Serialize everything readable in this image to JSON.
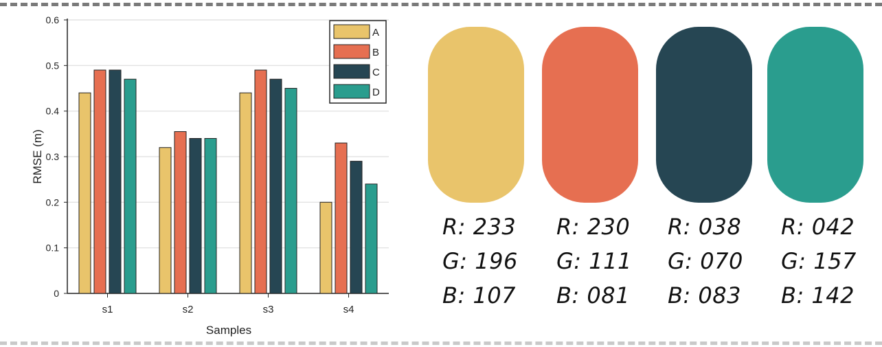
{
  "chart_data": {
    "type": "bar",
    "categories": [
      "s1",
      "s2",
      "s3",
      "s4"
    ],
    "series": [
      {
        "name": "A",
        "color": "#E9C46B",
        "values": [
          0.44,
          0.32,
          0.44,
          0.2
        ]
      },
      {
        "name": "B",
        "color": "#E66F51",
        "values": [
          0.49,
          0.355,
          0.49,
          0.33
        ]
      },
      {
        "name": "C",
        "color": "#264653",
        "values": [
          0.49,
          0.34,
          0.47,
          0.29
        ]
      },
      {
        "name": "D",
        "color": "#2A9D8E",
        "values": [
          0.47,
          0.34,
          0.45,
          0.24
        ]
      }
    ],
    "xlabel": "Samples",
    "ylabel": "RMSE (m)",
    "ylim": [
      0,
      0.6
    ],
    "yticks": [
      "0",
      "0.1",
      "0.2",
      "0.3",
      "0.4",
      "0.5",
      "0.6"
    ],
    "grid": true,
    "legend": "top-right"
  },
  "palette": [
    {
      "color": "#E9C46B",
      "r": "R: 233",
      "g": "G: 196",
      "b": "B: 107"
    },
    {
      "color": "#E66F51",
      "r": "R: 230",
      "g": "G: 111",
      "b": "B: 081"
    },
    {
      "color": "#264653",
      "r": "R: 038",
      "g": "G: 070",
      "b": "B: 083"
    },
    {
      "color": "#2A9D8E",
      "r": "R: 042",
      "g": "G: 157",
      "b": "B: 142"
    }
  ]
}
